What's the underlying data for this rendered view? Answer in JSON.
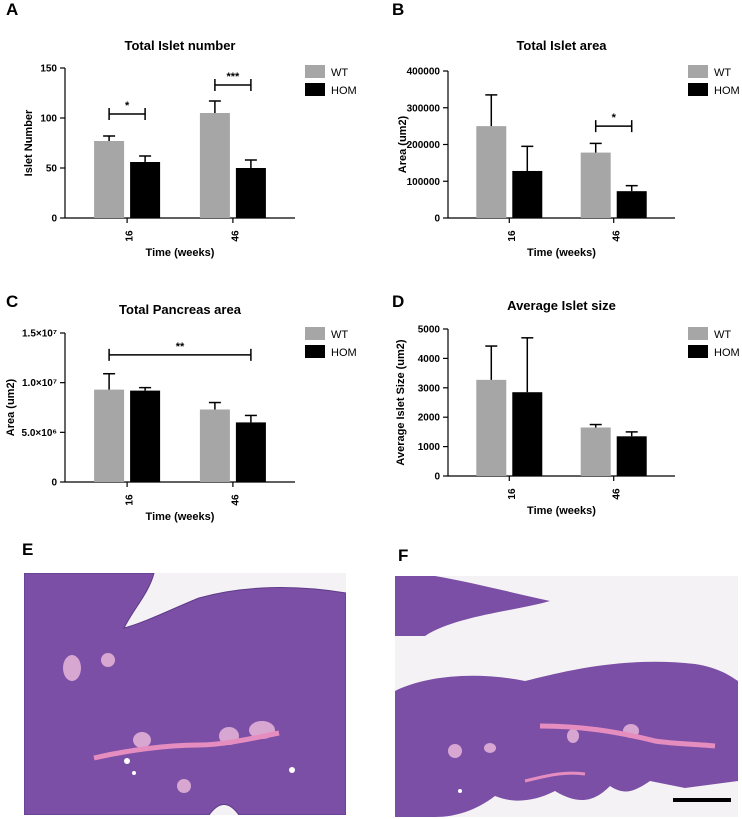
{
  "panels": {
    "A": "A",
    "B": "B",
    "C": "C",
    "D": "D",
    "E": "E",
    "F": "F"
  },
  "colors": {
    "wt": "#a6a6a6",
    "hom": "#000000",
    "tissue": "#7b4fa6",
    "islet": "#d7a7d2",
    "duct": "#e68dbf"
  },
  "histology": {
    "E": {
      "description_icon": "he-stained-pancreas-section-icon"
    },
    "F": {
      "description_icon": "he-stained-pancreas-section-icon",
      "scale_bar": true
    }
  },
  "chart_data": [
    {
      "id": "A",
      "type": "bar",
      "title": "Total Islet number",
      "xlabel": "Time (weeks)",
      "ylabel": "Islet Number",
      "categories": [
        "16",
        "46"
      ],
      "yticks": [
        "0",
        "50",
        "100",
        "150"
      ],
      "ylim": [
        0,
        150
      ],
      "series": [
        {
          "name": "WT",
          "values": [
            77,
            105
          ],
          "errors": [
            5,
            12
          ]
        },
        {
          "name": "HOM",
          "values": [
            56,
            50
          ],
          "errors": [
            6,
            8
          ]
        }
      ],
      "significance": [
        {
          "group": 0,
          "label": "*",
          "level": 104
        },
        {
          "group": 1,
          "label": "***",
          "level": 133
        }
      ]
    },
    {
      "id": "B",
      "type": "bar",
      "title": "Total Islet area",
      "xlabel": "Time (weeks)",
      "ylabel": "Area (um2)",
      "categories": [
        "16",
        "46"
      ],
      "yticks": [
        "0",
        "100000",
        "200000",
        "300000",
        "400000"
      ],
      "ylim": [
        0,
        400000
      ],
      "series": [
        {
          "name": "WT",
          "values": [
            250000,
            178000
          ],
          "errors": [
            85000,
            25000
          ]
        },
        {
          "name": "HOM",
          "values": [
            128000,
            73000
          ],
          "errors": [
            67000,
            15000
          ]
        }
      ],
      "significance": [
        {
          "group": 1,
          "label": "*",
          "level": 250000
        }
      ]
    },
    {
      "id": "C",
      "type": "bar",
      "title": "Total Pancreas area",
      "xlabel": "Time (weeks)",
      "ylabel": "Area (um2)",
      "categories": [
        "16",
        "46"
      ],
      "yticks": [
        "0",
        "5.0×10⁶",
        "1.0×10⁷",
        "1.5×10⁷"
      ],
      "ylim": [
        0,
        15000000
      ],
      "series": [
        {
          "name": "WT",
          "values": [
            9300000,
            7300000
          ],
          "errors": [
            1600000,
            700000
          ]
        },
        {
          "name": "HOM",
          "values": [
            9200000,
            6000000
          ],
          "errors": [
            300000,
            700000
          ]
        }
      ],
      "significance": [
        {
          "span": "all",
          "label": "**",
          "level": 12800000
        }
      ]
    },
    {
      "id": "D",
      "type": "bar",
      "title": "Average Islet size",
      "xlabel": "Time (weeks)",
      "ylabel": "Average  Islet Size  (um2)",
      "categories": [
        "16",
        "46"
      ],
      "yticks": [
        "0",
        "1000",
        "2000",
        "3000",
        "4000",
        "5000"
      ],
      "ylim": [
        0,
        5000
      ],
      "series": [
        {
          "name": "WT",
          "values": [
            3270,
            1650
          ],
          "errors": [
            1150,
            100
          ]
        },
        {
          "name": "HOM",
          "values": [
            2850,
            1350
          ],
          "errors": [
            1850,
            150
          ]
        }
      ],
      "significance": []
    }
  ]
}
